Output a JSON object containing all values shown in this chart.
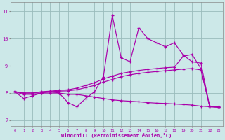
{
  "x_hours": [
    0,
    1,
    2,
    3,
    4,
    5,
    6,
    7,
    8,
    9,
    10,
    11,
    12,
    13,
    14,
    15,
    16,
    17,
    18,
    19,
    20,
    21,
    22,
    23
  ],
  "line_jagged": [
    8.05,
    7.8,
    7.9,
    8.0,
    8.05,
    8.0,
    7.65,
    7.5,
    7.8,
    8.05,
    8.6,
    10.85,
    9.3,
    9.15,
    10.4,
    10.0,
    9.85,
    9.7,
    9.85,
    9.4,
    9.15,
    9.1,
    7.5,
    7.5
  ],
  "line_upper": [
    8.05,
    8.0,
    8.0,
    8.05,
    8.07,
    8.1,
    8.12,
    8.18,
    8.28,
    8.38,
    8.52,
    8.62,
    8.72,
    8.78,
    8.83,
    8.87,
    8.9,
    8.93,
    8.95,
    9.35,
    9.42,
    8.9,
    7.5,
    7.48
  ],
  "line_mid": [
    8.05,
    8.0,
    8.0,
    8.03,
    8.05,
    8.07,
    8.08,
    8.12,
    8.2,
    8.28,
    8.4,
    8.5,
    8.6,
    8.67,
    8.72,
    8.76,
    8.79,
    8.82,
    8.85,
    8.88,
    8.9,
    8.85,
    7.5,
    7.48
  ],
  "line_lower": [
    8.05,
    7.95,
    7.95,
    8.0,
    8.0,
    8.0,
    7.95,
    7.95,
    7.9,
    7.85,
    7.8,
    7.75,
    7.72,
    7.7,
    7.68,
    7.65,
    7.63,
    7.62,
    7.6,
    7.58,
    7.56,
    7.52,
    7.5,
    7.48
  ],
  "background_color": "#cce8e8",
  "line_color": "#aa00aa",
  "grid_color": "#99bbbb",
  "xlabel": "Windchill (Refroidissement éolien,°C)",
  "yticks": [
    7,
    8,
    9,
    10,
    11
  ],
  "xlim": [
    -0.5,
    23.5
  ],
  "ylim": [
    6.78,
    11.35
  ]
}
